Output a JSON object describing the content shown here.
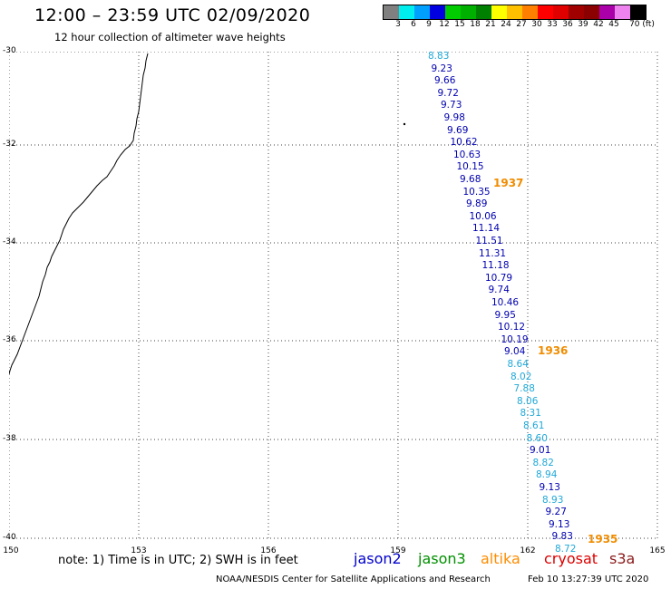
{
  "header": {
    "title": "12:00 – 23:59 UTC 02/09/2020",
    "subtitle": "12 hour collection of altimeter wave heights"
  },
  "scale": {
    "labels": [
      "3",
      "6",
      "9",
      "12",
      "15",
      "18",
      "21",
      "24",
      "27",
      "30",
      "33",
      "36",
      "39",
      "42",
      "45",
      "70 (ft)"
    ],
    "colors": [
      "#808080",
      "#00eeee",
      "#00a0ff",
      "#0000e0",
      "#00cc00",
      "#00b000",
      "#008000",
      "#ffff00",
      "#ffc000",
      "#ff8000",
      "#ff0000",
      "#e00000",
      "#a00000",
      "#8b0000",
      "#aa00aa",
      "#ee82ee",
      "#000000"
    ]
  },
  "map": {
    "lat_labels": [
      "-30",
      "-32",
      "-34",
      "-36",
      "-38",
      "-40"
    ],
    "lon_labels": [
      "150",
      "153",
      "156",
      "159",
      "162",
      "165"
    ]
  },
  "track": {
    "values": [
      "8.83",
      "9.23",
      "9.66",
      "9.72",
      "9.73",
      "9.98",
      "9.69",
      "10.62",
      "10.63",
      "10.15",
      "9.68",
      "10.35",
      "9.89",
      "10.06",
      "11.14",
      "11.51",
      "11.31",
      "11.18",
      "10.79",
      "9.74",
      "10.46",
      "9.95",
      "10.12",
      "10.19",
      "9.04",
      "8.64",
      "8.02",
      "7.88",
      "8.06",
      "8.31",
      "8.61",
      "8.60",
      "9.01",
      "8.82",
      "8.94",
      "9.13",
      "8.93",
      "9.27",
      "9.13",
      "9.83",
      "8.72"
    ],
    "colors": [
      "#20a8d8",
      "#0000b0",
      "#0000b0",
      "#0000b0",
      "#0000b0",
      "#0000b0",
      "#0000b0",
      "#0000b0",
      "#0000b0",
      "#0000b0",
      "#0000b0",
      "#0000b0",
      "#0000b0",
      "#0000b0",
      "#0000b0",
      "#0000b0",
      "#0000b0",
      "#0000b0",
      "#0000b0",
      "#0000b0",
      "#0000b0",
      "#0000b0",
      "#0000b0",
      "#0000b0",
      "#0000b0",
      "#20a8d8",
      "#20a8d8",
      "#20a8d8",
      "#20a8d8",
      "#20a8d8",
      "#20a8d8",
      "#20a8d8",
      "#0000b0",
      "#20a8d8",
      "#20a8d8",
      "#0000b0",
      "#20a8d8",
      "#0000b0",
      "#0000b0",
      "#0000b0",
      "#20a8d8"
    ],
    "pass_times": [
      "1937",
      "1936",
      "1935"
    ]
  },
  "footer": {
    "note": "note: 1) Time is in UTC; 2) SWH is in feet",
    "satellites": [
      {
        "name": "jason2",
        "color": "#0000cc"
      },
      {
        "name": "jason3",
        "color": "#009000"
      },
      {
        "name": "altika",
        "color": "#ff8c00"
      },
      {
        "name": "cryosat",
        "color": "#dd0000"
      },
      {
        "name": "s3a",
        "color": "#8b1a1a"
      }
    ],
    "credit": "NOAA/NESDIS Center for Satellite Applications and Research",
    "timestamp": "Feb 10 13:27:39 UTC 2020"
  }
}
